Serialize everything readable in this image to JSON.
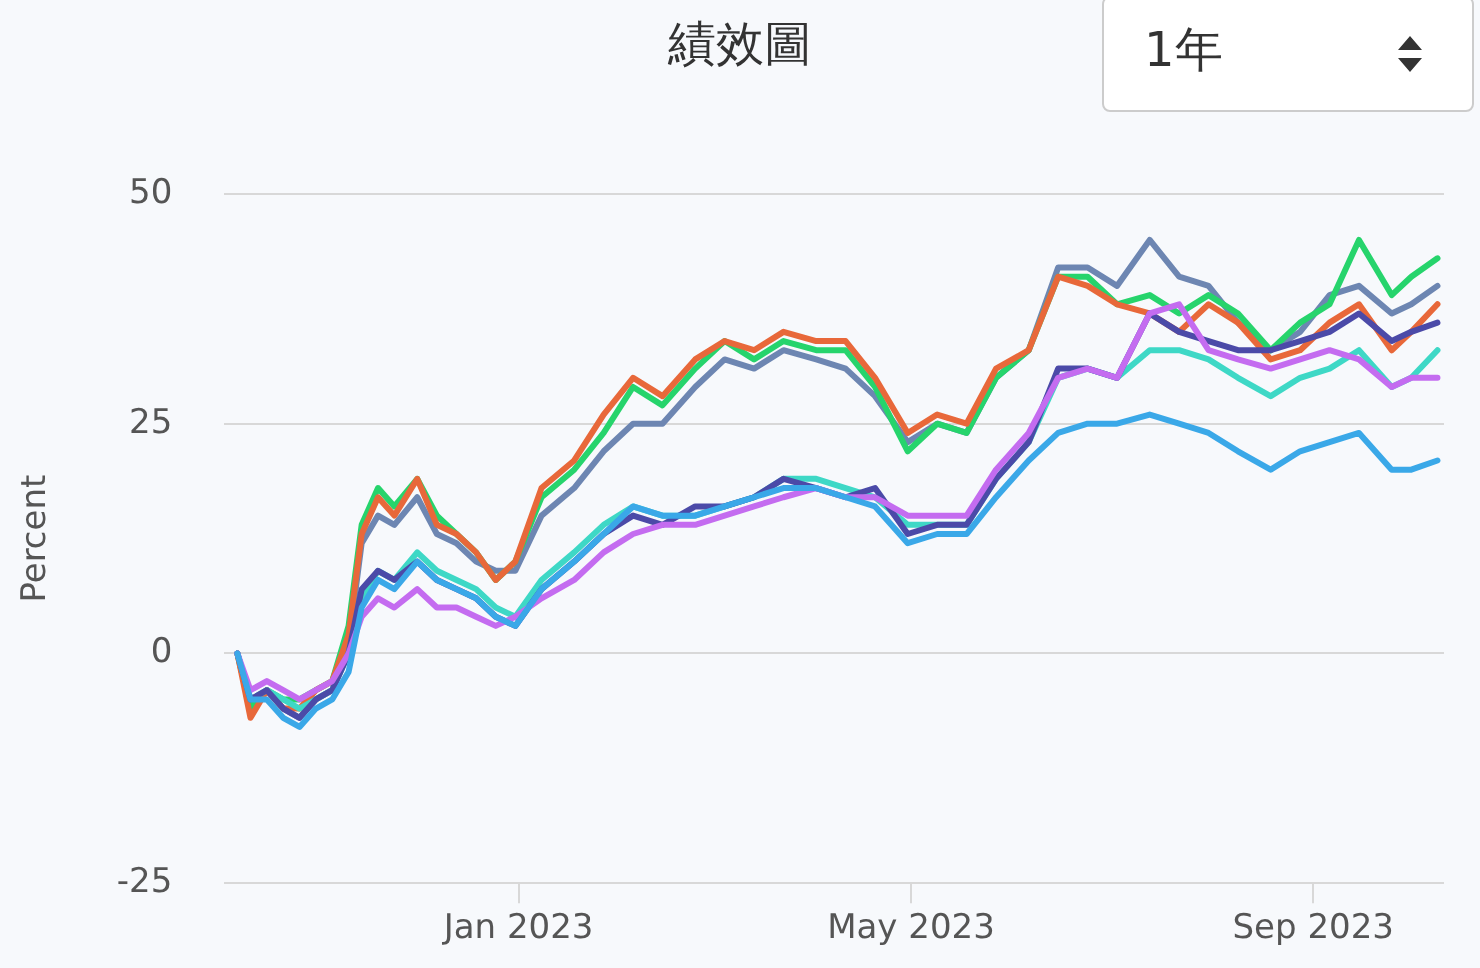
{
  "chart_data": {
    "type": "line",
    "title": "績效圖",
    "ylabel": "Percent",
    "annotations": [
      "1年"
    ],
    "x": [
      "2022-10-07",
      "2022-10-11",
      "2022-10-16",
      "2022-10-21",
      "2022-10-26",
      "2022-10-31",
      "2022-11-05",
      "2022-11-10",
      "2022-11-14",
      "2022-11-19",
      "2022-11-24",
      "2022-12-01",
      "2022-12-07",
      "2022-12-13",
      "2022-12-19",
      "2022-12-25",
      "2022-12-31",
      "2023-01-08",
      "2023-01-18",
      "2023-01-27",
      "2023-02-05",
      "2023-02-14",
      "2023-02-24",
      "2023-03-05",
      "2023-03-14",
      "2023-03-23",
      "2023-04-02",
      "2023-04-11",
      "2023-04-20",
      "2023-04-30",
      "2023-05-09",
      "2023-05-18",
      "2023-05-27",
      "2023-06-06",
      "2023-06-15",
      "2023-06-24",
      "2023-07-03",
      "2023-07-13",
      "2023-07-22",
      "2023-07-31",
      "2023-08-09",
      "2023-08-19",
      "2023-08-28",
      "2023-09-06",
      "2023-09-15",
      "2023-09-25",
      "2023-10-01",
      "2023-10-09"
    ],
    "xlim": [
      "2022-10-03",
      "2023-10-11"
    ],
    "xticks": [
      {
        "value": "2023-01-01",
        "label": "Jan 2023"
      },
      {
        "value": "2023-05-01",
        "label": "May 2023"
      },
      {
        "value": "2023-09-01",
        "label": "Sep 2023"
      }
    ],
    "ylim": [
      -25,
      50
    ],
    "yticks": [
      -25,
      0,
      25,
      50
    ],
    "grid": "y",
    "marker": "none",
    "line_style": "solid",
    "series": [
      {
        "color": "#3aa8e8",
        "values": [
          0,
          -5,
          -5,
          -7,
          -8,
          -6,
          -5,
          -2,
          5,
          8,
          7,
          10,
          8,
          7,
          6,
          4,
          3,
          7,
          10,
          13,
          16,
          15,
          15,
          16,
          17,
          18,
          18,
          17,
          16,
          12,
          13,
          13,
          17,
          21,
          24,
          25,
          25,
          26,
          25,
          24,
          22,
          20,
          22,
          23,
          24,
          20,
          20,
          21
        ]
      },
      {
        "color": "#c46cf0",
        "values": [
          0,
          -4,
          -3,
          -4,
          -5,
          -4,
          -3,
          0,
          4,
          6,
          5,
          7,
          5,
          5,
          4,
          3,
          4,
          6,
          8,
          11,
          13,
          14,
          14,
          15,
          16,
          17,
          18,
          17,
          17,
          15,
          15,
          15,
          20,
          24,
          30,
          31,
          30,
          37,
          38,
          33,
          32,
          31,
          32,
          33,
          32,
          29,
          30,
          30
        ]
      },
      {
        "color": "#4b4aa8",
        "values": [
          0,
          -5,
          -4,
          -6,
          -7,
          -5,
          -4,
          0,
          7,
          9,
          8,
          10,
          8,
          7,
          6,
          4,
          3,
          7,
          10,
          13,
          15,
          14,
          16,
          16,
          17,
          19,
          18,
          17,
          18,
          13,
          14,
          14,
          19,
          23,
          31,
          31,
          30,
          37,
          35,
          34,
          33,
          33,
          34,
          35,
          37,
          34,
          35,
          36
        ]
      },
      {
        "color": "#3ed8c6",
        "values": [
          0,
          -5,
          -4,
          -5,
          -6,
          -5,
          -4,
          0,
          6,
          9,
          8,
          11,
          9,
          8,
          7,
          5,
          4,
          8,
          11,
          14,
          16,
          15,
          15,
          16,
          17,
          19,
          19,
          18,
          17,
          14,
          14,
          14,
          19,
          23,
          30,
          31,
          30,
          33,
          33,
          32,
          30,
          28,
          30,
          31,
          33,
          29,
          30,
          33
        ]
      },
      {
        "color": "#e8683a",
        "values": [
          0,
          -7,
          -4,
          -6,
          -6,
          -4,
          -3,
          2,
          13,
          17,
          15,
          19,
          14,
          13,
          11,
          8,
          10,
          18,
          21,
          26,
          30,
          28,
          32,
          34,
          33,
          35,
          34,
          34,
          30,
          24,
          26,
          25,
          31,
          33,
          41,
          40,
          38,
          37,
          35,
          38,
          36,
          32,
          33,
          36,
          38,
          33,
          35,
          38
        ]
      },
      {
        "color": "#26d46c",
        "values": [
          0,
          -6,
          -4,
          -5,
          -5,
          -4,
          -3,
          3,
          14,
          18,
          16,
          19,
          15,
          13,
          11,
          8,
          10,
          17,
          20,
          24,
          29,
          27,
          31,
          34,
          32,
          34,
          33,
          33,
          29,
          22,
          25,
          24,
          30,
          33,
          41,
          41,
          38,
          39,
          37,
          39,
          37,
          33,
          36,
          38,
          45,
          39,
          41,
          43
        ]
      },
      {
        "color": "#6d86b2",
        "values": [
          0,
          -6,
          -4,
          -6,
          -7,
          -5,
          -4,
          1,
          12,
          15,
          14,
          17,
          13,
          12,
          10,
          9,
          9,
          15,
          18,
          22,
          25,
          25,
          29,
          32,
          31,
          33,
          32,
          31,
          28,
          23,
          25,
          24,
          30,
          33,
          42,
          42,
          40,
          45,
          41,
          40,
          36,
          33,
          35,
          39,
          40,
          37,
          38,
          40
        ]
      }
    ]
  }
}
